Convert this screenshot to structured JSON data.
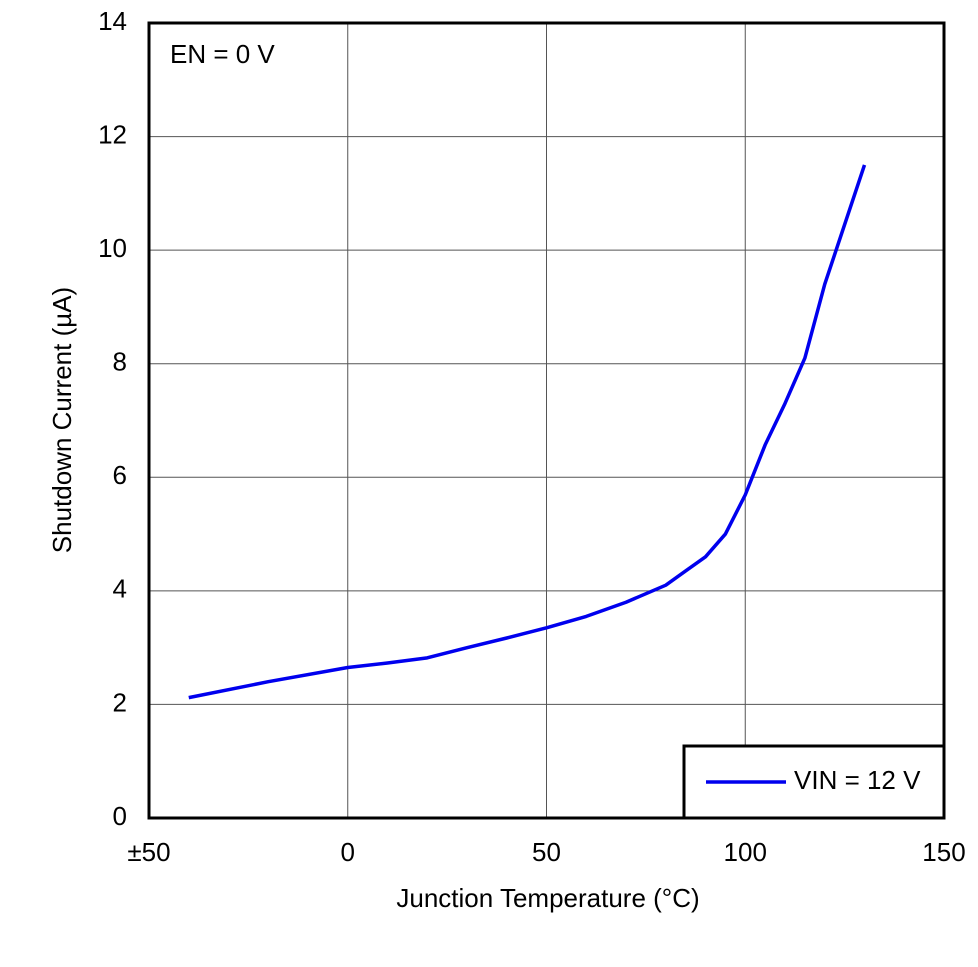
{
  "chart_data": {
    "type": "line",
    "annotation": "EN = 0 V",
    "x_label": "Junction Temperature (°C)",
    "y_label": "Shutdown Current (µA)",
    "x": [
      -40,
      -20,
      0,
      10,
      20,
      30,
      40,
      50,
      60,
      70,
      80,
      85,
      90,
      95,
      100,
      105,
      110,
      115,
      120,
      125,
      130
    ],
    "series": [
      {
        "name": "VIN = 12 V",
        "color": "#0000ee",
        "values": [
          2.12,
          2.4,
          2.65,
          2.73,
          2.82,
          3.0,
          3.17,
          3.35,
          3.55,
          3.8,
          4.1,
          4.35,
          4.6,
          5.0,
          5.69,
          6.57,
          7.3,
          8.1,
          9.4,
          10.45,
          11.5
        ]
      }
    ],
    "xlim": [
      -50,
      150
    ],
    "xticks": [
      {
        "value": -50,
        "label": "±50"
      },
      0,
      50,
      100,
      150
    ],
    "ylim": [
      0,
      14
    ],
    "yticks": [
      0,
      2,
      4,
      6,
      8,
      10,
      12,
      14
    ],
    "grid": true,
    "legend": "lower right"
  }
}
